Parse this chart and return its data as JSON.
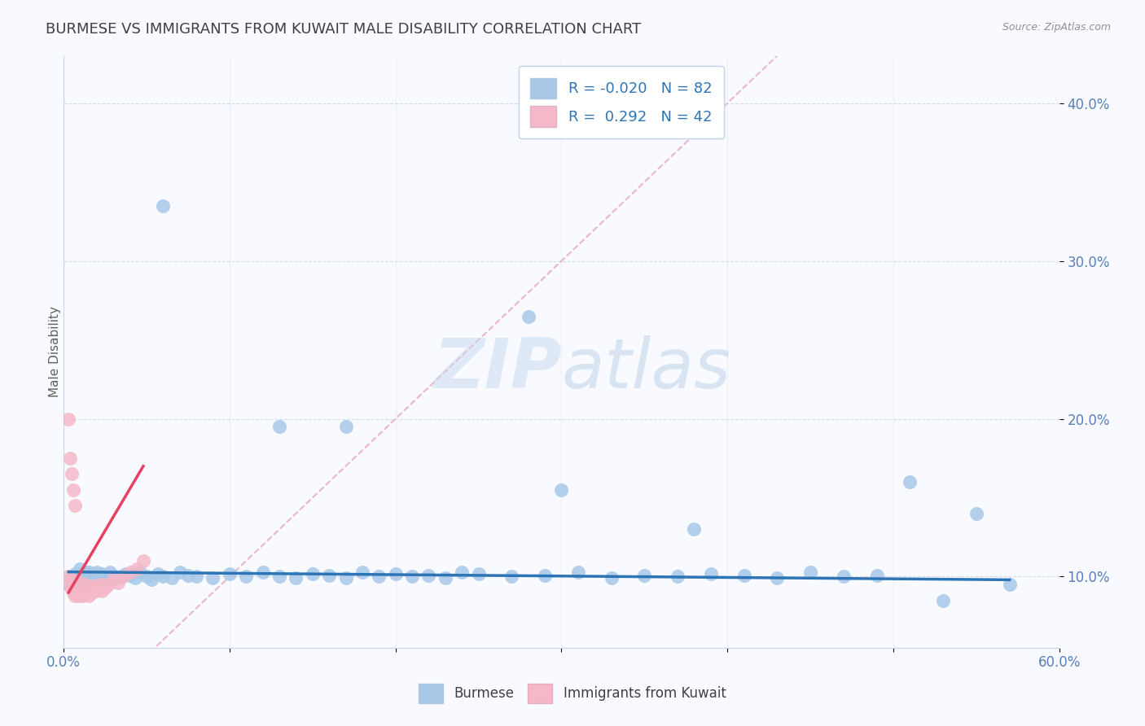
{
  "title": "BURMESE VS IMMIGRANTS FROM KUWAIT MALE DISABILITY CORRELATION CHART",
  "source": "Source: ZipAtlas.com",
  "watermark": "ZIPatlas",
  "ylabel": "Male Disability",
  "xlim": [
    0.0,
    0.6
  ],
  "ylim": [
    0.055,
    0.43
  ],
  "xticks": [
    0.0,
    0.1,
    0.2,
    0.3,
    0.4,
    0.5,
    0.6
  ],
  "xticklabels": [
    "0.0%",
    "",
    "",
    "",
    "",
    "",
    "60.0%"
  ],
  "yticks": [
    0.1,
    0.2,
    0.3,
    0.4
  ],
  "yticklabels": [
    "10.0%",
    "20.0%",
    "30.0%",
    "40.0%"
  ],
  "burmese_R": -0.02,
  "burmese_N": 82,
  "kuwait_R": 0.292,
  "kuwait_N": 42,
  "burmese_color": "#a8c8e8",
  "burmese_line_color": "#2e75b6",
  "kuwait_color": "#f4b8c8",
  "kuwait_line_color": "#e84060",
  "ref_line_color": "#e8b0c0",
  "grid_color": "#d0d8e8",
  "background_color": "#f8faff",
  "title_color": "#404040",
  "title_fontsize": 13,
  "burmese_x": [
    0.003,
    0.005,
    0.006,
    0.007,
    0.008,
    0.009,
    0.01,
    0.01,
    0.01,
    0.011,
    0.012,
    0.012,
    0.013,
    0.013,
    0.014,
    0.015,
    0.015,
    0.016,
    0.017,
    0.018,
    0.019,
    0.02,
    0.021,
    0.022,
    0.023,
    0.025,
    0.027,
    0.028,
    0.03,
    0.032,
    0.035,
    0.037,
    0.04,
    0.043,
    0.046,
    0.05,
    0.053,
    0.057,
    0.06,
    0.065,
    0.07,
    0.075,
    0.08,
    0.09,
    0.1,
    0.11,
    0.12,
    0.13,
    0.14,
    0.15,
    0.16,
    0.17,
    0.18,
    0.19,
    0.2,
    0.21,
    0.22,
    0.23,
    0.24,
    0.25,
    0.27,
    0.29,
    0.31,
    0.33,
    0.35,
    0.37,
    0.39,
    0.41,
    0.43,
    0.45,
    0.47,
    0.49,
    0.51,
    0.53,
    0.55,
    0.57,
    0.3,
    0.38,
    0.28,
    0.17,
    0.13,
    0.06
  ],
  "burmese_y": [
    0.095,
    0.1,
    0.098,
    0.102,
    0.097,
    0.1,
    0.105,
    0.095,
    0.098,
    0.1,
    0.102,
    0.098,
    0.103,
    0.097,
    0.101,
    0.099,
    0.103,
    0.1,
    0.102,
    0.099,
    0.101,
    0.103,
    0.1,
    0.098,
    0.102,
    0.1,
    0.099,
    0.103,
    0.101,
    0.099,
    0.1,
    0.102,
    0.101,
    0.099,
    0.103,
    0.1,
    0.098,
    0.102,
    0.1,
    0.099,
    0.103,
    0.101,
    0.1,
    0.099,
    0.102,
    0.1,
    0.103,
    0.1,
    0.099,
    0.102,
    0.101,
    0.099,
    0.103,
    0.1,
    0.102,
    0.1,
    0.101,
    0.099,
    0.103,
    0.102,
    0.1,
    0.101,
    0.103,
    0.099,
    0.101,
    0.1,
    0.102,
    0.101,
    0.099,
    0.103,
    0.1,
    0.101,
    0.16,
    0.085,
    0.14,
    0.095,
    0.155,
    0.13,
    0.265,
    0.195,
    0.195,
    0.335
  ],
  "kuwait_x": [
    0.003,
    0.004,
    0.005,
    0.005,
    0.006,
    0.007,
    0.007,
    0.008,
    0.008,
    0.009,
    0.009,
    0.01,
    0.01,
    0.011,
    0.011,
    0.012,
    0.012,
    0.013,
    0.014,
    0.015,
    0.015,
    0.016,
    0.017,
    0.018,
    0.019,
    0.02,
    0.021,
    0.022,
    0.023,
    0.025,
    0.027,
    0.03,
    0.033,
    0.036,
    0.04,
    0.044,
    0.048,
    0.003,
    0.004,
    0.005,
    0.006,
    0.007
  ],
  "kuwait_y": [
    0.1,
    0.095,
    0.092,
    0.098,
    0.09,
    0.093,
    0.088,
    0.095,
    0.091,
    0.094,
    0.088,
    0.096,
    0.09,
    0.093,
    0.088,
    0.095,
    0.091,
    0.094,
    0.09,
    0.092,
    0.088,
    0.094,
    0.09,
    0.093,
    0.091,
    0.094,
    0.092,
    0.095,
    0.091,
    0.093,
    0.095,
    0.098,
    0.096,
    0.1,
    0.103,
    0.105,
    0.11,
    0.2,
    0.175,
    0.165,
    0.155,
    0.145
  ],
  "burmese_trend_x": [
    0.003,
    0.57
  ],
  "burmese_trend_y": [
    0.103,
    0.098
  ],
  "kuwait_trend_x": [
    0.003,
    0.048
  ],
  "kuwait_trend_y": [
    0.09,
    0.17
  ]
}
